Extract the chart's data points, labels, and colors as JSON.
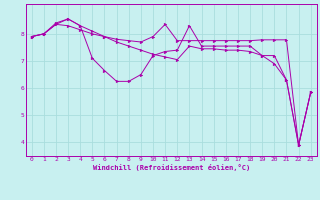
{
  "xlabel": "Windchill (Refroidissement éolien,°C)",
  "background_color": "#c8f0f0",
  "line_color": "#aa00aa",
  "grid_color": "#aadddd",
  "xlim": [
    -0.5,
    23.5
  ],
  "ylim": [
    3.5,
    9.1
  ],
  "yticks": [
    4,
    5,
    6,
    7,
    8
  ],
  "xticks": [
    0,
    1,
    2,
    3,
    4,
    5,
    6,
    7,
    8,
    9,
    10,
    11,
    12,
    13,
    14,
    15,
    16,
    17,
    18,
    19,
    20,
    21,
    22,
    23
  ],
  "series": [
    {
      "x": [
        0,
        1,
        2,
        3,
        4,
        5,
        6,
        7,
        8,
        9,
        10,
        11,
        12,
        13,
        14,
        15,
        16,
        17,
        18,
        19,
        20,
        21,
        22,
        23
      ],
      "y": [
        7.9,
        8.0,
        8.35,
        8.3,
        8.15,
        8.0,
        7.9,
        7.8,
        7.75,
        7.7,
        7.9,
        8.35,
        7.75,
        7.75,
        7.75,
        7.75,
        7.75,
        7.75,
        7.75,
        7.78,
        7.78,
        7.78,
        3.9,
        5.85
      ]
    },
    {
      "x": [
        0,
        1,
        2,
        3,
        4,
        5,
        6,
        7,
        8,
        9,
        10,
        11,
        12,
        13,
        14,
        15,
        16,
        17,
        18,
        19,
        20,
        21,
        22,
        23
      ],
      "y": [
        7.9,
        8.0,
        8.35,
        8.55,
        8.3,
        7.1,
        6.65,
        6.25,
        6.25,
        6.5,
        7.2,
        7.35,
        7.4,
        8.3,
        7.55,
        7.55,
        7.55,
        7.55,
        7.55,
        7.2,
        7.2,
        6.3,
        3.9,
        5.85
      ]
    },
    {
      "x": [
        0,
        1,
        2,
        3,
        4,
        5,
        6,
        7,
        8,
        9,
        10,
        11,
        12,
        13,
        14,
        15,
        16,
        17,
        18,
        19,
        20,
        21,
        22,
        23
      ],
      "y": [
        7.9,
        8.0,
        8.4,
        8.55,
        8.3,
        8.1,
        7.9,
        7.7,
        7.55,
        7.4,
        7.25,
        7.15,
        7.05,
        7.55,
        7.45,
        7.45,
        7.4,
        7.4,
        7.35,
        7.2,
        6.9,
        6.3,
        3.9,
        5.85
      ]
    }
  ]
}
